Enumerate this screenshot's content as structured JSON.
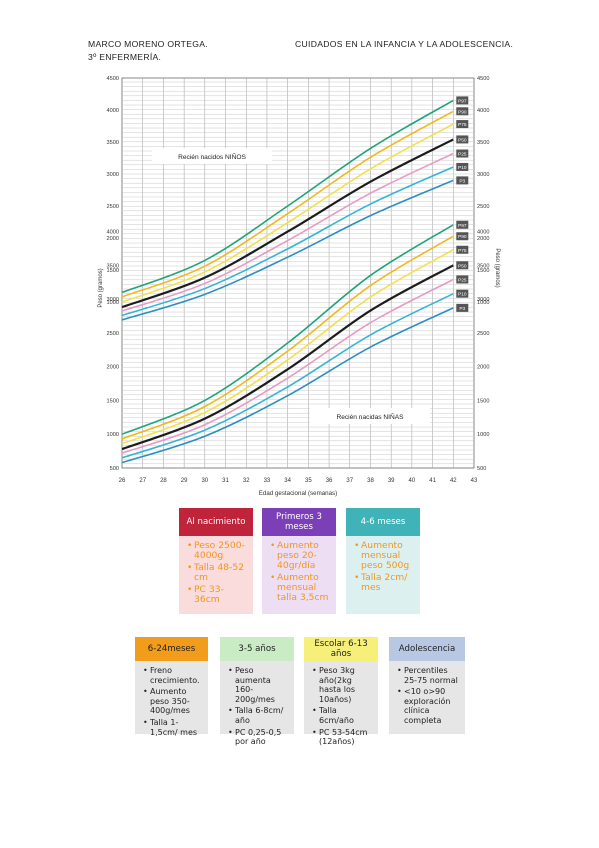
{
  "header": {
    "author": "MARCO MORENO ORTEGA.",
    "course": "3º ENFERMERÍA.",
    "title": "CUIDADOS EN LA INFANCIA Y LA ADOLESCENCIA."
  },
  "chart_data": {
    "type": "line",
    "xlabel": "Edad gestacional (semanas)",
    "ylabel_left": "Peso (gramos)",
    "ylabel_right": "Peso (gramos)",
    "x_ticks": [
      26,
      27,
      28,
      29,
      30,
      31,
      32,
      33,
      34,
      35,
      36,
      37,
      38,
      39,
      40,
      41,
      42,
      43
    ],
    "panels": [
      {
        "label": "Recién nacidos NIÑOS",
        "y_ticks": [
          1000,
          1500,
          2000,
          2500,
          3000,
          3500,
          4000,
          4500
        ],
        "series": [
          {
            "name": "P97",
            "color": "#1fa37c",
            "x": [
              26,
              30,
              34,
              38,
              42
            ],
            "values": [
              1150,
              1650,
              2500,
              3400,
              4150
            ]
          },
          {
            "name": "P90",
            "color": "#f2b81c",
            "x": [
              26,
              30,
              34,
              38,
              42
            ],
            "values": [
              1080,
              1560,
              2380,
              3260,
              3980
            ]
          },
          {
            "name": "P75",
            "color": "#f4e04a",
            "x": [
              26,
              30,
              34,
              38,
              42
            ],
            "values": [
              1000,
              1470,
              2240,
              3080,
              3780
            ]
          },
          {
            "name": "P50",
            "color": "#1c1c1c",
            "x": [
              26,
              30,
              34,
              38,
              42
            ],
            "values": [
              920,
              1380,
              2100,
              2880,
              3540
            ]
          },
          {
            "name": "P25",
            "color": "#e89ac4",
            "x": [
              26,
              30,
              34,
              38,
              42
            ],
            "values": [
              860,
              1290,
              1960,
              2700,
              3320
            ]
          },
          {
            "name": "P10",
            "color": "#36b4d6",
            "x": [
              26,
              30,
              34,
              38,
              42
            ],
            "values": [
              790,
              1210,
              1830,
              2530,
              3110
            ]
          },
          {
            "name": "P3",
            "color": "#2a8fc4",
            "x": [
              26,
              30,
              34,
              38,
              42
            ],
            "values": [
              720,
              1120,
              1700,
              2350,
              2900
            ]
          }
        ]
      },
      {
        "label": "Recién nacidas NIÑAS",
        "y_ticks": [
          500,
          1000,
          1500,
          2000,
          2500,
          3000,
          3500,
          4000
        ],
        "series": [
          {
            "name": "P97",
            "color": "#1fa37c",
            "x": [
              26,
              30,
              34,
              38,
              42
            ],
            "values": [
              1000,
              1500,
              2350,
              3350,
              4100
            ]
          },
          {
            "name": "P90",
            "color": "#f2b81c",
            "x": [
              26,
              30,
              34,
              38,
              42
            ],
            "values": [
              930,
              1410,
              2230,
              3200,
              3930
            ]
          },
          {
            "name": "P75",
            "color": "#f4e04a",
            "x": [
              26,
              30,
              34,
              38,
              42
            ],
            "values": [
              860,
              1320,
              2100,
              3030,
              3730
            ]
          },
          {
            "name": "P50",
            "color": "#1c1c1c",
            "x": [
              26,
              30,
              34,
              38,
              42
            ],
            "values": [
              780,
              1230,
              1960,
              2830,
              3500
            ]
          },
          {
            "name": "P25",
            "color": "#e89ac4",
            "x": [
              26,
              30,
              34,
              38,
              42
            ],
            "values": [
              720,
              1140,
              1830,
              2650,
              3290
            ]
          },
          {
            "name": "P10",
            "color": "#36b4d6",
            "x": [
              26,
              30,
              34,
              38,
              42
            ],
            "values": [
              650,
              1060,
              1700,
              2470,
              3080
            ]
          },
          {
            "name": "P3",
            "color": "#2a8fc4",
            "x": [
              26,
              30,
              34,
              38,
              42
            ],
            "values": [
              580,
              970,
              1570,
              2290,
              2870
            ]
          }
        ]
      }
    ]
  },
  "cards_top": [
    {
      "title": "Al nacimiento",
      "color": "#c0243a",
      "bg": "#fbdcdc",
      "items": [
        "Peso 2500-4000g",
        "Talla 48-52 cm",
        "PC 33-36cm"
      ]
    },
    {
      "title": "Primeros 3 meses",
      "color": "#7b3fb8",
      "bg": "#eedef3",
      "items": [
        "Aumento peso 20-40gr/día",
        "Aumento mensual talla 3,5cm"
      ]
    },
    {
      "title": "4-6 meses",
      "color": "#3fb3b8",
      "bg": "#ddf0f0",
      "items": [
        "Aumento mensual peso 500g",
        "Talla 2cm/ mes"
      ]
    }
  ],
  "cards_bottom": [
    {
      "title": "6-24meses",
      "color": "#f19c1a",
      "bg": "#e6e6e6",
      "items": [
        "Freno crecimiento.",
        "Aumento peso 350-400g/mes",
        "Talla 1-1,5cm/ mes"
      ]
    },
    {
      "title": "3-5 años",
      "color": "#c9ecc4",
      "bg": "#e6e6e6",
      "items": [
        "Peso aumenta 160-200g/mes",
        "Talla 6-8cm/ año",
        "PC 0,25-0,5 por año"
      ]
    },
    {
      "title": "Escolar 6-13 años",
      "color": "#f6f07a",
      "bg": "#e6e6e6",
      "items": [
        "Peso 3kg año(2kg hasta los 10años)",
        "Talla 6cm/año",
        "PC 53-54cm (12años)"
      ]
    },
    {
      "title": "Adolescencia",
      "color": "#b8c8e4",
      "bg": "#e6e6e6",
      "items": [
        "Percentiles 25-75 normal",
        "<10 o>90 exploración clínica completa"
      ]
    }
  ]
}
